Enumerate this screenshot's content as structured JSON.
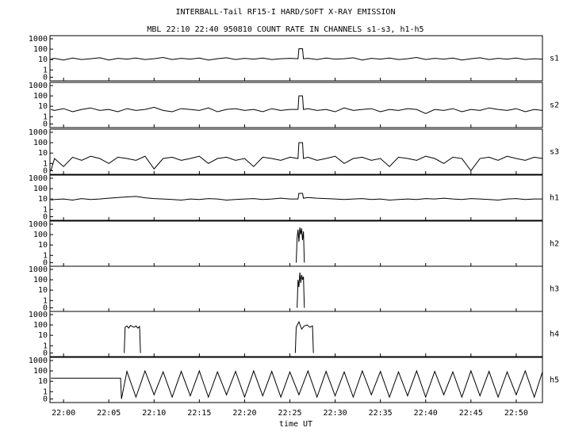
{
  "title": "INTERBALL-Tail RF15-I HARD/SOFT X-RAY EMISSION",
  "subtitle": "MBL 22:10 22:40 950810  COUNT RATE IN CHANNELS s1-s3, h1-h5",
  "xlabel": "time UT",
  "xlim": [
    1318.5,
    1372.9
  ],
  "xticks": [
    {
      "value": 1320,
      "label": "22:00"
    },
    {
      "value": 1325,
      "label": "22:05"
    },
    {
      "value": 1330,
      "label": "22:10"
    },
    {
      "value": 1335,
      "label": "22:15"
    },
    {
      "value": 1340,
      "label": "22:20"
    },
    {
      "value": 1345,
      "label": "22:25"
    },
    {
      "value": 1350,
      "label": "22:30"
    },
    {
      "value": 1355,
      "label": "22:35"
    },
    {
      "value": 1360,
      "label": "22:40"
    },
    {
      "value": 1365,
      "label": "22:45"
    },
    {
      "value": 1370,
      "label": "22:50"
    }
  ],
  "chart_data": [
    {
      "type": "line",
      "name": "s1",
      "log_y": true,
      "color": "#000000",
      "ylim": [
        0.09,
        2000
      ],
      "yticks": [
        {
          "value": 0.2,
          "label": "0"
        },
        1,
        10,
        100,
        1000
      ],
      "x": [
        1318.6,
        1319,
        1320,
        1321,
        1322,
        1323,
        1324,
        1325,
        1326,
        1327,
        1328,
        1329,
        1330,
        1331,
        1332,
        1333,
        1334,
        1335,
        1336,
        1337,
        1338,
        1339,
        1340,
        1341,
        1342,
        1343,
        1344,
        1345,
        1345.9,
        1346,
        1346.4,
        1346.5,
        1347,
        1348,
        1349,
        1350,
        1351,
        1352,
        1353,
        1354,
        1355,
        1356,
        1357,
        1358,
        1359,
        1360,
        1361,
        1362,
        1363,
        1364,
        1365,
        1366,
        1367,
        1368,
        1369,
        1370,
        1371,
        1372,
        1372.9
      ],
      "values": [
        11,
        13,
        9,
        14,
        10,
        12,
        15,
        9,
        13,
        11,
        14,
        10,
        12,
        16,
        10,
        13,
        11,
        14,
        9,
        12,
        15,
        10,
        13,
        11,
        14,
        10,
        12,
        13,
        12,
        110,
        110,
        12,
        13,
        10,
        14,
        11,
        12,
        15,
        9,
        13,
        11,
        14,
        10,
        12,
        16,
        10,
        13,
        11,
        14,
        9,
        12,
        15,
        10,
        13,
        11,
        14,
        10,
        12,
        11
      ]
    },
    {
      "type": "line",
      "name": "s2",
      "log_y": true,
      "color": "#000000",
      "ylim": [
        0.09,
        2000
      ],
      "yticks": [
        {
          "value": 0.2,
          "label": "0"
        },
        1,
        10,
        100,
        1000
      ],
      "x": [
        1318.6,
        1319,
        1320,
        1321,
        1322,
        1323,
        1324,
        1325,
        1326,
        1327,
        1328,
        1329,
        1330,
        1331,
        1332,
        1333,
        1334,
        1335,
        1336,
        1337,
        1338,
        1339,
        1340,
        1341,
        1342,
        1343,
        1344,
        1345,
        1345.9,
        1346,
        1346.4,
        1346.5,
        1347,
        1348,
        1349,
        1350,
        1351,
        1352,
        1353,
        1354,
        1355,
        1356,
        1357,
        1358,
        1359,
        1360,
        1361,
        1362,
        1363,
        1364,
        1365,
        1366,
        1367,
        1368,
        1369,
        1370,
        1371,
        1372,
        1372.9
      ],
      "values": [
        5,
        4,
        6,
        3,
        5,
        7,
        4,
        5,
        3,
        6,
        4,
        5,
        8,
        4,
        3,
        6,
        5,
        4,
        7,
        3,
        5,
        6,
        4,
        5,
        3,
        6,
        4,
        5,
        5,
        100,
        100,
        5,
        6,
        4,
        5,
        3,
        7,
        4,
        5,
        6,
        3,
        5,
        4,
        6,
        5,
        2,
        5,
        4,
        6,
        3,
        5,
        4,
        7,
        5,
        4,
        6,
        3,
        5,
        4
      ]
    },
    {
      "type": "line",
      "name": "s3",
      "log_y": true,
      "color": "#000000",
      "ylim": [
        0.09,
        2000
      ],
      "yticks": [
        {
          "value": 0.2,
          "label": "0"
        },
        1,
        10,
        100,
        1000
      ],
      "x": [
        1318.6,
        1319,
        1320,
        1321,
        1322,
        1323,
        1324,
        1325,
        1326,
        1327,
        1328,
        1329,
        1330,
        1331,
        1332,
        1333,
        1334,
        1335,
        1336,
        1337,
        1338,
        1339,
        1340,
        1341,
        1342,
        1343,
        1344,
        1345,
        1345.9,
        1346,
        1346.4,
        1346.5,
        1347,
        1348,
        1349,
        1350,
        1351,
        1352,
        1353,
        1354,
        1355,
        1356,
        1357,
        1358,
        1359,
        1360,
        1361,
        1362,
        1363,
        1364,
        1365,
        1366,
        1367,
        1368,
        1369,
        1370,
        1371,
        1372,
        1372.9
      ],
      "values": [
        0.2,
        3,
        0.5,
        4,
        2,
        5,
        3,
        1,
        4,
        3,
        2,
        5,
        0.3,
        3,
        4,
        2,
        3,
        5,
        1,
        3,
        4,
        2,
        3,
        0.5,
        4,
        3,
        2,
        4,
        3,
        100,
        100,
        3,
        4,
        2,
        3,
        5,
        1,
        3,
        4,
        2,
        3,
        0.5,
        4,
        3,
        2,
        5,
        3,
        1,
        4,
        3,
        0.2,
        3,
        4,
        2,
        5,
        3,
        2,
        4,
        3
      ]
    },
    {
      "type": "line",
      "name": "h1",
      "log_y": true,
      "color": "#000000",
      "ylim": [
        0.09,
        2000
      ],
      "yticks": [
        {
          "value": 0.2,
          "label": "0"
        },
        1,
        10,
        100,
        1000
      ],
      "x": [
        1318.6,
        1319,
        1320,
        1321,
        1322,
        1323,
        1324,
        1325,
        1326,
        1327,
        1328,
        1329,
        1330,
        1331,
        1332,
        1333,
        1334,
        1335,
        1336,
        1337,
        1338,
        1339,
        1340,
        1341,
        1342,
        1343,
        1344,
        1345,
        1345.9,
        1346,
        1346.4,
        1346.5,
        1347,
        1348,
        1349,
        1350,
        1351,
        1352,
        1353,
        1354,
        1355,
        1356,
        1357,
        1358,
        1359,
        1360,
        1361,
        1362,
        1363,
        1364,
        1365,
        1366,
        1367,
        1368,
        1369,
        1370,
        1371,
        1372,
        1372.9
      ],
      "values": [
        8,
        9,
        10,
        8,
        11,
        9,
        10,
        12,
        14,
        16,
        18,
        13,
        11,
        10,
        9,
        8,
        10,
        9,
        11,
        10,
        8,
        9,
        10,
        11,
        9,
        10,
        12,
        10,
        10,
        35,
        35,
        12,
        14,
        12,
        11,
        10,
        9,
        10,
        11,
        9,
        10,
        8,
        9,
        10,
        9,
        11,
        10,
        12,
        10,
        9,
        11,
        10,
        9,
        8,
        10,
        11,
        9,
        10,
        10
      ]
    },
    {
      "type": "line",
      "name": "h2",
      "log_y": true,
      "color": "#000000",
      "ylim": [
        0.09,
        2000
      ],
      "yticks": [
        {
          "value": 0.2,
          "label": "0"
        },
        1,
        10,
        100,
        1000
      ],
      "x": [
        1345.7,
        1345.8,
        1345.9,
        1346,
        1346.1,
        1346.2,
        1346.3,
        1346.4,
        1346.5,
        1346.6
      ],
      "values": [
        0.2,
        50,
        300,
        20,
        500,
        100,
        400,
        30,
        200,
        0.2
      ]
    },
    {
      "type": "line",
      "name": "h3",
      "log_y": true,
      "color": "#000000",
      "ylim": [
        0.09,
        2000
      ],
      "yticks": [
        {
          "value": 0.2,
          "label": "0"
        },
        1,
        10,
        100,
        1000
      ],
      "x": [
        1345.8,
        1345.9,
        1346,
        1346.1,
        1346.2,
        1346.3,
        1346.4,
        1346.5,
        1346.6
      ],
      "values": [
        0.2,
        100,
        20,
        500,
        50,
        300,
        100,
        200,
        0.2
      ]
    },
    {
      "type": "line",
      "name": "h4",
      "log_y": true,
      "color": "#000000",
      "ylim": [
        0.09,
        2000
      ],
      "yticks": [
        {
          "value": 0.2,
          "label": "0"
        },
        1,
        10,
        100,
        1000
      ],
      "x": [
        1326.7,
        1326.8,
        1327,
        1327.2,
        1327.4,
        1327.6,
        1327.8,
        1328,
        1328.2,
        1328.4,
        1328.5,
        1337,
        1345.6,
        1345.7,
        1346,
        1346.3,
        1346.6,
        1346.9,
        1347.2,
        1347.5,
        1347.6
      ],
      "values": [
        0.2,
        60,
        80,
        50,
        90,
        70,
        60,
        80,
        50,
        70,
        0.2,
        null,
        0.2,
        60,
        200,
        40,
        80,
        100,
        60,
        80,
        0.2
      ]
    },
    {
      "type": "line",
      "name": "h5",
      "log_y": true,
      "color": "#000000",
      "ylim": [
        0.09,
        2000
      ],
      "yticks": [
        {
          "value": 0.2,
          "label": "0"
        },
        1,
        10,
        100,
        1000
      ],
      "x": [
        1318.6,
        1326.3,
        1326.4,
        1327,
        1328,
        1329,
        1330,
        1331,
        1332,
        1333,
        1334,
        1335,
        1336,
        1337,
        1338,
        1339,
        1340,
        1341,
        1342,
        1343,
        1344,
        1345,
        1346,
        1347,
        1348,
        1349,
        1350,
        1351,
        1352,
        1353,
        1354,
        1355,
        1356,
        1357,
        1358,
        1359,
        1360,
        1361,
        1362,
        1363,
        1364,
        1365,
        1366,
        1367,
        1368,
        1369,
        1370,
        1371,
        1372,
        1372.9
      ],
      "values": [
        20,
        20,
        0.2,
        90,
        0.3,
        100,
        0.5,
        80,
        0.3,
        90,
        0.4,
        100,
        0.3,
        80,
        0.5,
        90,
        0.3,
        100,
        0.4,
        90,
        0.3,
        80,
        0.5,
        100,
        0.3,
        90,
        0.4,
        80,
        0.3,
        100,
        0.5,
        90,
        0.3,
        80,
        0.4,
        100,
        0.3,
        90,
        0.5,
        80,
        0.3,
        100,
        0.4,
        90,
        0.3,
        80,
        0.5,
        100,
        0.3,
        80
      ]
    }
  ]
}
